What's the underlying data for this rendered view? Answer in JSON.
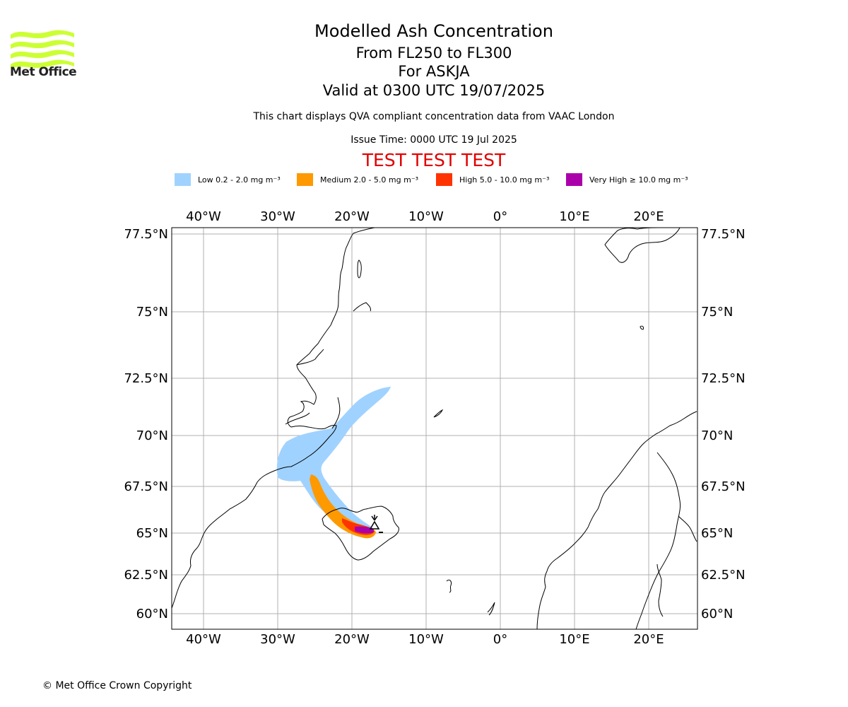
{
  "logo": {
    "name": "Met Office",
    "brand_color": "#ccff33"
  },
  "header": {
    "title": "Modelled Ash Concentration",
    "level_range": "From FL250 to FL300",
    "volcano": "For ASKJA",
    "valid_time": "Valid at 0300 UTC 19/07/2025",
    "note": "This chart displays QVA compliant concentration data from VAAC London",
    "issue_time": "Issue Time: 0000 UTC 19 Jul 2025",
    "test_banner": "TEST TEST TEST",
    "test_color": "#e00000"
  },
  "legend": [
    {
      "label": "Low 0.2 - 2.0 mg m⁻³",
      "color": "#a0d2ff"
    },
    {
      "label": "Medium 2.0 - 5.0 mg m⁻³",
      "color": "#ff9900"
    },
    {
      "label": "High 5.0 - 10.0 mg m⁻³",
      "color": "#ff3300"
    },
    {
      "label": "Very High  ≥  10.0 mg m⁻³",
      "color": "#aa00aa"
    }
  ],
  "map": {
    "lon_labels": [
      "40°W",
      "30°W",
      "20°W",
      "10°W",
      "0°",
      "10°E",
      "20°E"
    ],
    "lat_labels": [
      "77.5°N",
      "75°N",
      "72.5°N",
      "70°N",
      "67.5°N",
      "65°N",
      "62.5°N",
      "60°N"
    ],
    "gridlines": true
  },
  "footer": {
    "copyright": "© Met Office Crown Copyright"
  }
}
